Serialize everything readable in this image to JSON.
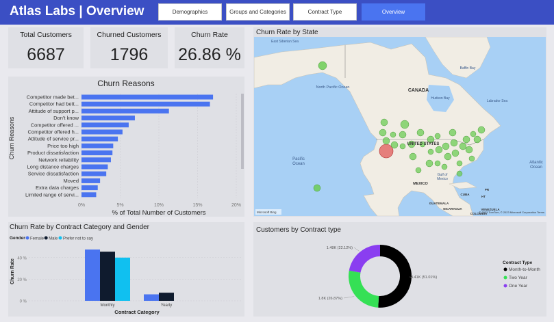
{
  "header": {
    "title": "Atlas Labs | Overview",
    "tabs": [
      {
        "label": "Demographics"
      },
      {
        "label": "Groups and Categories"
      },
      {
        "label": "Contract Type"
      },
      {
        "label": "Overview"
      }
    ]
  },
  "kpis": {
    "total_customers": {
      "label": "Total Customers",
      "value": "6687"
    },
    "churned_customers": {
      "label": "Churned Customers",
      "value": "1796"
    },
    "churn_rate": {
      "label": "Churn Rate",
      "value": "26.86 %"
    }
  },
  "map": {
    "title": "Churn Rate by State",
    "labels": {
      "canada": "CANADA",
      "united_states": "UNITED STATES",
      "mexico": "MEXICO",
      "north_pacific_ocean": "North Pacific Ocean",
      "pacific_ocean": "Pacific\nOcean",
      "atlantic_ocean": "Atlantic\nOcean",
      "gulf_of_mexico": "Gulf of\nMexico",
      "baffin_bay": "Baffin Bay",
      "hudson_bay": "Hudson Bay",
      "labrador_sea": "Labrador Sea",
      "east_siberian_sea": "East Siberian Sea",
      "cuba": "CUBA",
      "haiti": "HT",
      "puerto_rico": "PR",
      "guatemala": "GUATEMALA",
      "nicaragua": "NICARAGUA",
      "venezuela": "VENEZUELA",
      "colombia": "COLOMBIA"
    },
    "attribution": "© 2023 TomTom, © 2023 Microsoft Corporation  Terms",
    "logo_text": "Microsoft Bing"
  },
  "chart_data": [
    {
      "id": "churn_reasons",
      "type": "bar",
      "orientation": "horizontal",
      "title": "Churn Reasons",
      "xlabel": "% of Total Number of Customers",
      "ylabel": "Churn Reasons",
      "categories": [
        "Competitor made bet...",
        "Competitor had bett...",
        "Attitude of support p...",
        "Don't know",
        "Competitor offered ...",
        "Competitor offered h...",
        "Attitude of service pr...",
        "Price too high",
        "Product dissatisfaction",
        "Network reliability",
        "Long distance charges",
        "Service dissatisfaction",
        "Moved",
        "Extra data charges",
        "Limited range of servi..."
      ],
      "values": [
        17.0,
        16.6,
        11.3,
        6.9,
        6.1,
        5.3,
        4.7,
        4.1,
        4.0,
        3.8,
        3.4,
        3.2,
        2.4,
        2.1,
        1.9
      ],
      "xlim": [
        0,
        20
      ],
      "xticks": [
        "0%",
        "5%",
        "10%",
        "15%",
        "20%"
      ],
      "colors": {
        "bar": "#4a74f0"
      }
    },
    {
      "id": "churn_by_contract_gender",
      "type": "bar",
      "title": "Churn Rate by Contract Category and Gender",
      "legend_title": "Gender",
      "xlabel": "Contract Category",
      "ylabel": "Churn Rate",
      "categories": [
        "Monthly",
        "Yearly"
      ],
      "series": [
        {
          "name": "Female",
          "values": [
            47.5,
            6.0
          ],
          "color": "#4a74f0"
        },
        {
          "name": "Male",
          "values": [
            45.5,
            7.5
          ],
          "color": "#0f1b2e"
        },
        {
          "name": "Prefer not to say",
          "values": [
            40.0,
            0
          ],
          "color": "#10c0f0"
        }
      ],
      "ylim": [
        0,
        50
      ],
      "yticks": [
        "0 %",
        "20 %",
        "40 %"
      ]
    },
    {
      "id": "customers_by_contract_type",
      "type": "pie",
      "donut": true,
      "title": "Customers by Contract type",
      "legend_title": "Contract Type",
      "slices": [
        {
          "name": "Month-to-Month",
          "value": 3.41,
          "label": "3.41K (51.01%)",
          "color": "#000000"
        },
        {
          "name": "Two Year",
          "value": 1.8,
          "label": "1.8K (26.87%)",
          "color": "#35e055"
        },
        {
          "name": "One Year",
          "value": 1.48,
          "label": "1.48K (22.12%)",
          "color": "#8a3ef0"
        }
      ]
    }
  ]
}
